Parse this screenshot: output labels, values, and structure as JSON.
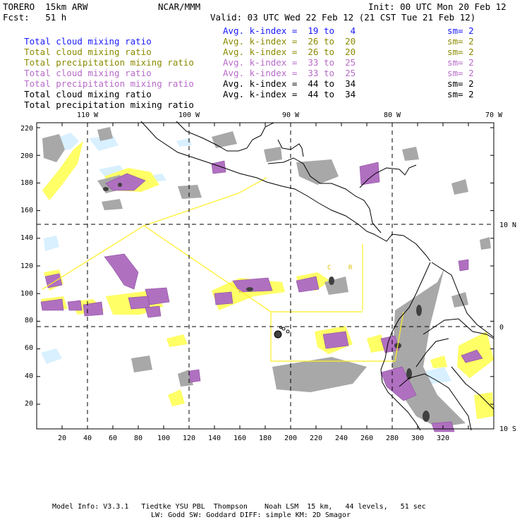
{
  "header": {
    "model": "TORERO  15km ARW",
    "center": "NCAR/MMM",
    "init": "Init: 00 UTC Mon 20 Feb 12",
    "fcst": "Fcst:   51 h",
    "valid": "Valid: 03 UTC Wed 22 Feb 12 (21 CST Tue 21 Feb 12)"
  },
  "fields": [
    {
      "name": "Total cloud mixing ratio",
      "index": "Avg. k-index =  19 to   4",
      "sm": "sm= 2",
      "color": "#1a1aff"
    },
    {
      "name": "Total cloud mixing ratio",
      "index": "Avg. k-index =  26 to  20",
      "sm": "sm= 2",
      "color": "#8a8a00"
    },
    {
      "name": "Total precipitation mixing ratio",
      "index": "Avg. k-index =  26 to  20",
      "sm": "sm= 2",
      "color": "#8a8a00"
    },
    {
      "name": "Total cloud mixing ratio",
      "index": "Avg. k-index =  33 to  25",
      "sm": "sm= 2",
      "color": "#b86bc8"
    },
    {
      "name": "Total precipitation mixing ratio",
      "index": "Avg. k-index =  33 to  25",
      "sm": "sm= 2",
      "color": "#b86bc8"
    },
    {
      "name": "Total cloud mixing ratio",
      "index": "Avg. k-index =  44 to  34",
      "sm": "sm= 2",
      "color": "#000000"
    },
    {
      "name": "Total precipitation mixing ratio",
      "index": "Avg. k-index =  44 to  34",
      "sm": "sm= 2",
      "color": "#000000"
    }
  ],
  "map": {
    "lon_labels": [
      "110 W",
      "100 W",
      "90 W",
      "80 W",
      "70 W"
    ],
    "lat_labels": [
      "10 N",
      "0",
      "10 S"
    ],
    "x_ticks": [
      "20",
      "40",
      "60",
      "80",
      "100",
      "120",
      "140",
      "160",
      "180",
      "200",
      "220",
      "240",
      "260",
      "280",
      "300",
      "320"
    ],
    "y_ticks": [
      "220",
      "200",
      "180",
      "160",
      "140",
      "120",
      "100",
      "80",
      "60",
      "40",
      "20"
    ],
    "annotations": [
      "C",
      "R"
    ],
    "colors": {
      "ocean": "#ffffff",
      "coast": "#000000",
      "grid": "#000000",
      "domain_box": "#ffee22",
      "yellow_field": "#ffff66",
      "purple_field": "#b070c0",
      "gray_field": "#a8a8a8",
      "dark_gray": "#404040",
      "lightblue_field": "#d8f0ff"
    }
  },
  "footer": {
    "line1": "Model Info: V3.3.1   Tiedtke YSU PBL  Thompson    Noah LSM  15 km,   44 levels,   51 sec",
    "line2": "LW: Godd SW: Goddard DIFF: simple KM: 2D Smagor"
  }
}
